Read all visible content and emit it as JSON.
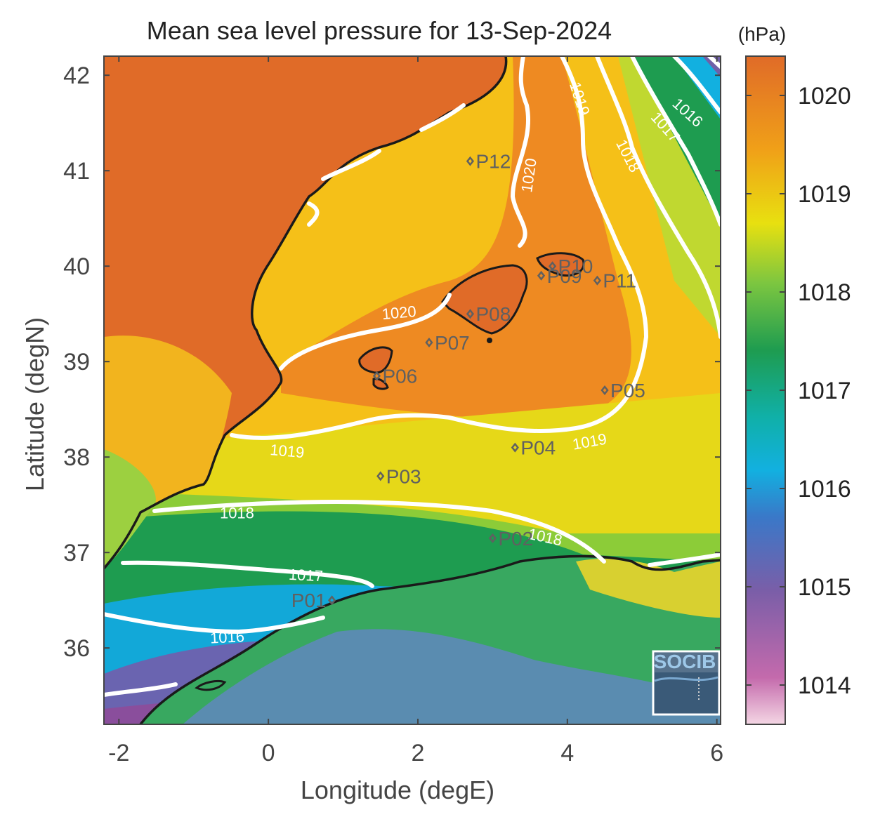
{
  "title": "Mean sea level pressure for 13-Sep-2024",
  "xlabel": "Longitude (degE)",
  "ylabel": "Latitude (degN)",
  "x_ticks": [
    -2,
    0,
    2,
    4,
    6
  ],
  "y_ticks": [
    36,
    37,
    38,
    39,
    40,
    41,
    42
  ],
  "xlim": [
    -2.2,
    6.05
  ],
  "ylim": [
    35.2,
    42.2
  ],
  "colorbar": {
    "units": "(hPa)",
    "ticks": [
      1014,
      1015,
      1016,
      1017,
      1018,
      1019,
      1020
    ],
    "range": [
      1013.6,
      1020.4
    ]
  },
  "contour_labels": [
    {
      "text": "1020",
      "lon": 3.5,
      "lat": 40.95,
      "rot": -82
    },
    {
      "text": "1019",
      "lon": 4.15,
      "lat": 41.75,
      "rot": 72
    },
    {
      "text": "1018",
      "lon": 4.8,
      "lat": 41.15,
      "rot": 63
    },
    {
      "text": "1017",
      "lon": 5.3,
      "lat": 41.45,
      "rot": 48
    },
    {
      "text": "1016",
      "lon": 5.6,
      "lat": 41.6,
      "rot": 42
    },
    {
      "text": "1020",
      "lon": 1.75,
      "lat": 39.5,
      "rot": -5
    },
    {
      "text": "1019",
      "lon": 0.25,
      "lat": 38.05,
      "rot": 5
    },
    {
      "text": "1019",
      "lon": 4.3,
      "lat": 38.15,
      "rot": -10
    },
    {
      "text": "1018",
      "lon": -0.42,
      "lat": 37.4,
      "rot": 0
    },
    {
      "text": "1018",
      "lon": 3.7,
      "lat": 37.15,
      "rot": 12
    },
    {
      "text": "1017",
      "lon": 0.5,
      "lat": 36.75,
      "rot": 3
    },
    {
      "text": "1016",
      "lon": -0.55,
      "lat": 36.1,
      "rot": -3
    }
  ],
  "points": [
    {
      "name": "P01",
      "lon": 0.85,
      "lat": 36.5
    },
    {
      "name": "P02",
      "lon": 3.0,
      "lat": 37.15
    },
    {
      "name": "P03",
      "lon": 1.5,
      "lat": 37.8
    },
    {
      "name": "P04",
      "lon": 3.3,
      "lat": 38.1
    },
    {
      "name": "P05",
      "lon": 4.5,
      "lat": 38.7
    },
    {
      "name": "P06",
      "lon": 1.45,
      "lat": 38.85
    },
    {
      "name": "P07",
      "lon": 2.15,
      "lat": 39.2
    },
    {
      "name": "P08",
      "lon": 2.7,
      "lat": 39.5
    },
    {
      "name": "P09",
      "lon": 3.65,
      "lat": 39.9
    },
    {
      "name": "P10",
      "lon": 3.8,
      "lat": 40.0
    },
    {
      "name": "P11",
      "lon": 4.4,
      "lat": 39.85
    },
    {
      "name": "P12",
      "lon": 2.7,
      "lat": 41.1
    }
  ],
  "logo": {
    "text": "SOCIB"
  },
  "colors": {
    "land_high": "#e06b28",
    "sea_1019": "#f0d010",
    "sea_1018": "#1e9c50",
    "sea_1016": "#12b0e0",
    "sea_1015": "#7060a8",
    "coast": "#1a1a1a",
    "isobar": "#ffffff"
  }
}
